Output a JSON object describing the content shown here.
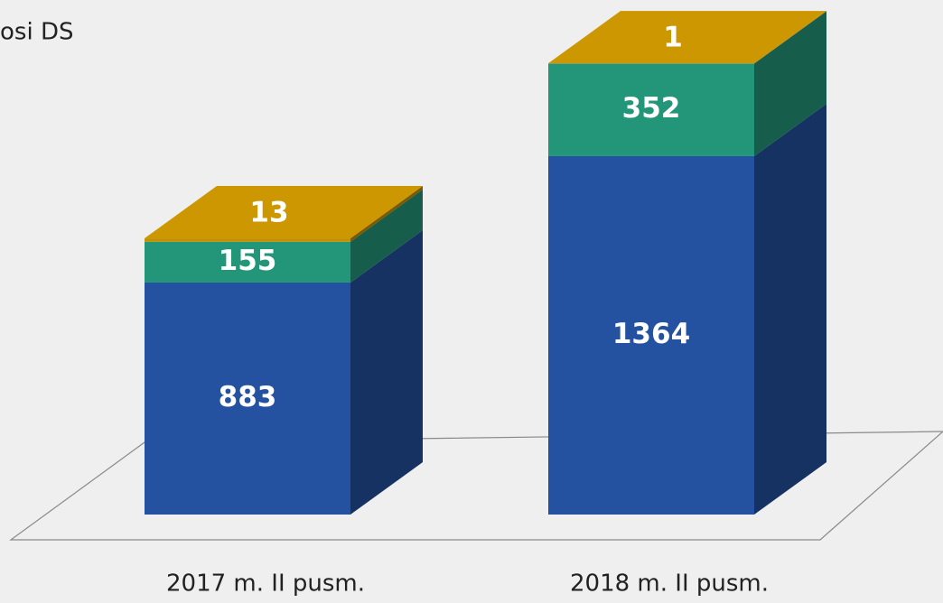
{
  "chart_data": {
    "type": "bar3d_stacked",
    "legend_text": "osi DS",
    "categories": [
      "2017 m. II pusm.",
      "2018 m. II pusm."
    ],
    "series": [
      {
        "color": "#2451a0",
        "values": [
          883,
          1364
        ]
      },
      {
        "color": "#23967a",
        "values": [
          155,
          352
        ]
      },
      {
        "color": "#c49100",
        "values": [
          13,
          1
        ]
      }
    ]
  }
}
